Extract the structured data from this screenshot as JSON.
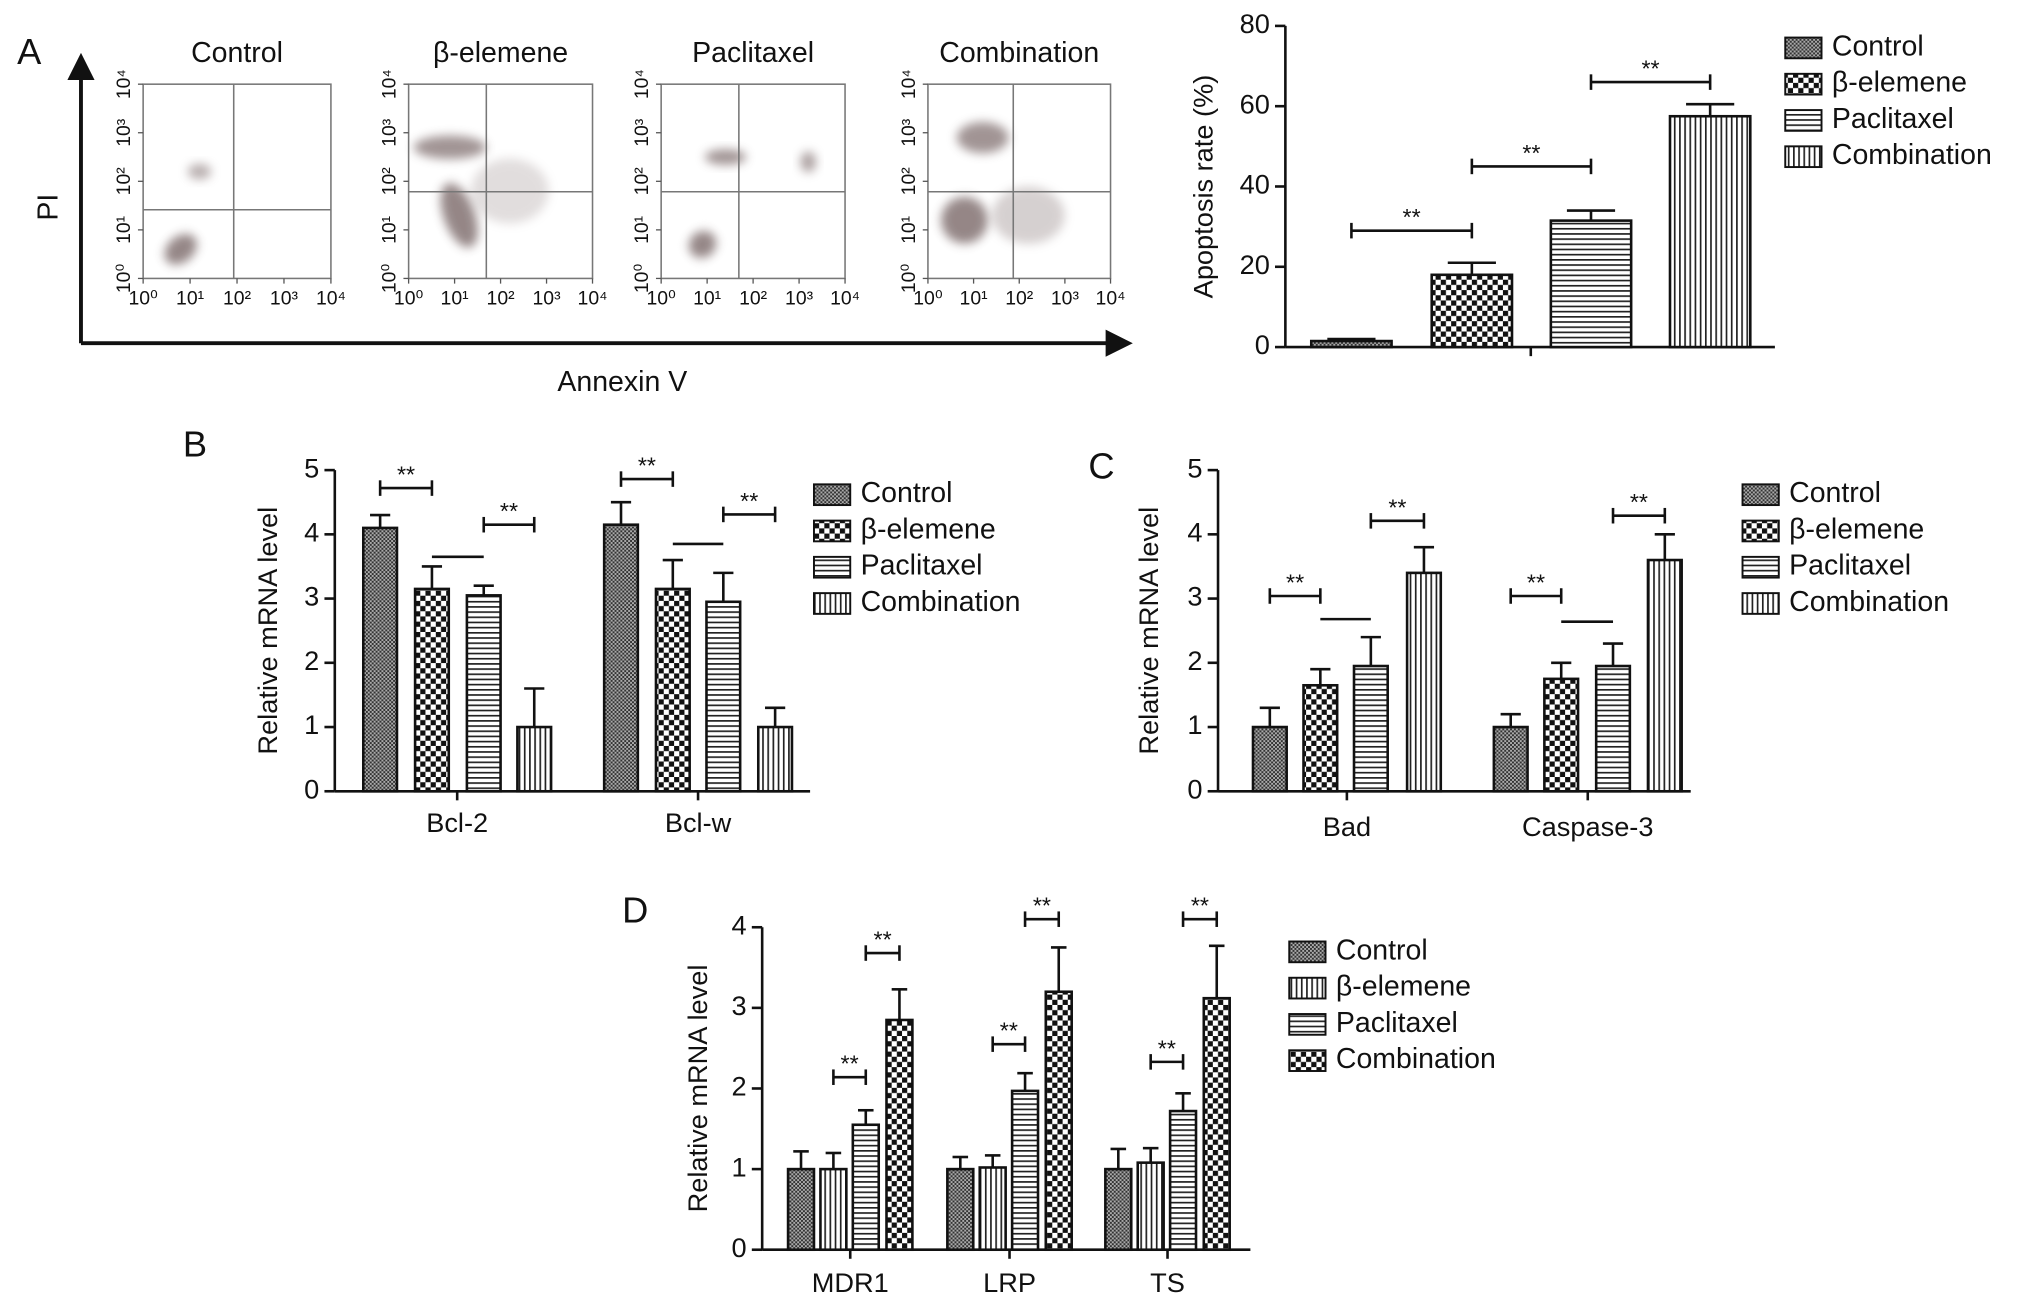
{
  "chart_data": [
    {
      "type": "density",
      "panel": "A",
      "title": "Control",
      "xlabel": "Annexin V",
      "ylabel": "PI",
      "log_scale": true,
      "xlim": [
        1,
        10000
      ],
      "ylim": [
        1,
        10000
      ],
      "gate": [
        85,
        26
      ],
      "xticks": [
        {
          "value": 1,
          "label": "10⁰"
        },
        {
          "value": 10,
          "label": "10¹"
        },
        {
          "value": 100,
          "label": "10²"
        },
        {
          "value": 1000,
          "label": "10³"
        },
        {
          "value": 10000,
          "label": "10⁴"
        }
      ],
      "yticks": [
        {
          "value": 1,
          "label": "10⁰"
        },
        {
          "value": 10,
          "label": "10¹"
        },
        {
          "value": 100,
          "label": "10²"
        },
        {
          "value": 1000,
          "label": "10³"
        },
        {
          "value": 10000,
          "label": "10⁴"
        }
      ]
    },
    {
      "type": "density",
      "title": "β-elemene",
      "log_scale": true,
      "xlim": [
        1,
        10000
      ],
      "ylim": [
        1,
        10000
      ],
      "gate": [
        49,
        61
      ],
      "xticks": [
        {
          "value": 1,
          "label": "10⁰"
        },
        {
          "value": 10,
          "label": "10¹"
        },
        {
          "value": 100,
          "label": "10²"
        },
        {
          "value": 1000,
          "label": "10³"
        },
        {
          "value": 10000,
          "label": "10⁴"
        }
      ],
      "yticks": [
        {
          "value": 1,
          "label": "10⁰"
        },
        {
          "value": 10,
          "label": "10¹"
        },
        {
          "value": 100,
          "label": "10²"
        },
        {
          "value": 1000,
          "label": "10³"
        },
        {
          "value": 10000,
          "label": "10⁴"
        }
      ]
    },
    {
      "type": "density",
      "title": "Paclitaxel",
      "log_scale": true,
      "xlim": [
        1,
        10000
      ],
      "ylim": [
        1,
        10000
      ],
      "gate": [
        49,
        61
      ],
      "xticks": [
        {
          "value": 1,
          "label": "10⁰"
        },
        {
          "value": 10,
          "label": "10¹"
        },
        {
          "value": 100,
          "label": "10²"
        },
        {
          "value": 1000,
          "label": "10³"
        },
        {
          "value": 10000,
          "label": "10⁴"
        }
      ],
      "yticks": [
        {
          "value": 1,
          "label": "10⁰"
        },
        {
          "value": 10,
          "label": "10¹"
        },
        {
          "value": 100,
          "label": "10²"
        },
        {
          "value": 1000,
          "label": "10³"
        },
        {
          "value": 10000,
          "label": "10⁴"
        }
      ]
    },
    {
      "type": "density",
      "title": "Combination",
      "log_scale": true,
      "xlim": [
        1,
        10000
      ],
      "ylim": [
        1,
        10000
      ],
      "gate": [
        74,
        61
      ],
      "xticks": [
        {
          "value": 1,
          "label": "10⁰"
        },
        {
          "value": 10,
          "label": "10¹"
        },
        {
          "value": 100,
          "label": "10²"
        },
        {
          "value": 1000,
          "label": "10³"
        },
        {
          "value": 10000,
          "label": "10⁴"
        }
      ],
      "yticks": [
        {
          "value": 1,
          "label": "10⁰"
        },
        {
          "value": 10,
          "label": "10¹"
        },
        {
          "value": 100,
          "label": "10²"
        },
        {
          "value": 1000,
          "label": "10³"
        },
        {
          "value": 10000,
          "label": "10⁴"
        }
      ]
    },
    {
      "type": "bar",
      "ylabel": "Apoptosis rate (%)",
      "categories": [
        null
      ],
      "ylim": [
        0,
        80
      ],
      "yticks": [
        0,
        20,
        40,
        60,
        80
      ],
      "annotations": [
        "**",
        "**",
        "**"
      ],
      "series": [
        {
          "name": "Control",
          "pattern": "fine",
          "values": [
            1.5
          ],
          "errors": [
            0.5
          ]
        },
        {
          "name": "β-elemene",
          "pattern": "checker",
          "values": [
            18
          ],
          "errors": [
            3
          ]
        },
        {
          "name": "Paclitaxel",
          "pattern": "hlines",
          "values": [
            31.5
          ],
          "errors": [
            2.5
          ]
        },
        {
          "name": "Combination",
          "pattern": "vlines",
          "values": [
            57.5
          ],
          "errors": [
            3
          ]
        }
      ]
    },
    {
      "type": "bar",
      "panel": "B",
      "ylabel": "Relative mRNA level",
      "categories": [
        "Bcl-2",
        "Bcl-w"
      ],
      "ylim": [
        0,
        5
      ],
      "yticks": [
        0,
        1,
        2,
        3,
        4,
        5
      ],
      "annotations": [
        "**",
        "**",
        "**",
        "**"
      ],
      "series": [
        {
          "name": "Control",
          "pattern": "fine",
          "values": [
            4.1,
            4.15
          ],
          "errors": [
            0.2,
            0.35
          ]
        },
        {
          "name": "β-elemene",
          "pattern": "checker",
          "values": [
            3.15,
            3.15
          ],
          "errors": [
            0.35,
            0.45
          ]
        },
        {
          "name": "Paclitaxel",
          "pattern": "hlines",
          "values": [
            3.05,
            2.95
          ],
          "errors": [
            0.15,
            0.45
          ]
        },
        {
          "name": "Combination",
          "pattern": "vlines",
          "values": [
            1.0,
            1.0
          ],
          "errors": [
            0.6,
            0.3
          ]
        }
      ]
    },
    {
      "type": "bar",
      "panel": "C",
      "ylabel": "Relative mRNA level",
      "categories": [
        "Bad",
        "Caspase-3"
      ],
      "ylim": [
        0,
        5
      ],
      "yticks": [
        0,
        1,
        2,
        3,
        4,
        5
      ],
      "annotations": [
        "**",
        "**",
        "**",
        "**"
      ],
      "series": [
        {
          "name": "Control",
          "pattern": "fine",
          "values": [
            1.0,
            1.0
          ],
          "errors": [
            0.3,
            0.2
          ]
        },
        {
          "name": "β-elemene",
          "pattern": "checker",
          "values": [
            1.65,
            1.75
          ],
          "errors": [
            0.25,
            0.25
          ]
        },
        {
          "name": "Paclitaxel",
          "pattern": "hlines",
          "values": [
            1.95,
            1.95
          ],
          "errors": [
            0.45,
            0.35
          ]
        },
        {
          "name": "Combination",
          "pattern": "vlines",
          "values": [
            3.4,
            3.6
          ],
          "errors": [
            0.4,
            0.4
          ]
        }
      ]
    },
    {
      "type": "bar",
      "panel": "D",
      "ylabel": "Relative mRNA level",
      "categories": [
        "MDR1",
        "LRP",
        "TS"
      ],
      "ylim": [
        0,
        4
      ],
      "yticks": [
        0,
        1,
        2,
        3,
        4
      ],
      "annotations": [
        "**",
        "**",
        "**",
        "**",
        "**",
        "**"
      ],
      "series": [
        {
          "name": "Control",
          "pattern": "fine",
          "values": [
            1.0,
            1.0,
            1.0
          ],
          "errors": [
            0.22,
            0.15,
            0.25
          ]
        },
        {
          "name": "β-elemene",
          "pattern": "vlines",
          "values": [
            1.0,
            1.02,
            1.08
          ],
          "errors": [
            0.2,
            0.15,
            0.18
          ]
        },
        {
          "name": "Paclitaxel",
          "pattern": "hlines",
          "values": [
            1.55,
            1.97,
            1.72
          ],
          "errors": [
            0.18,
            0.22,
            0.22
          ]
        },
        {
          "name": "Combination",
          "pattern": "checker",
          "values": [
            2.85,
            3.2,
            3.12
          ],
          "errors": [
            0.38,
            0.55,
            0.65
          ]
        }
      ]
    }
  ]
}
